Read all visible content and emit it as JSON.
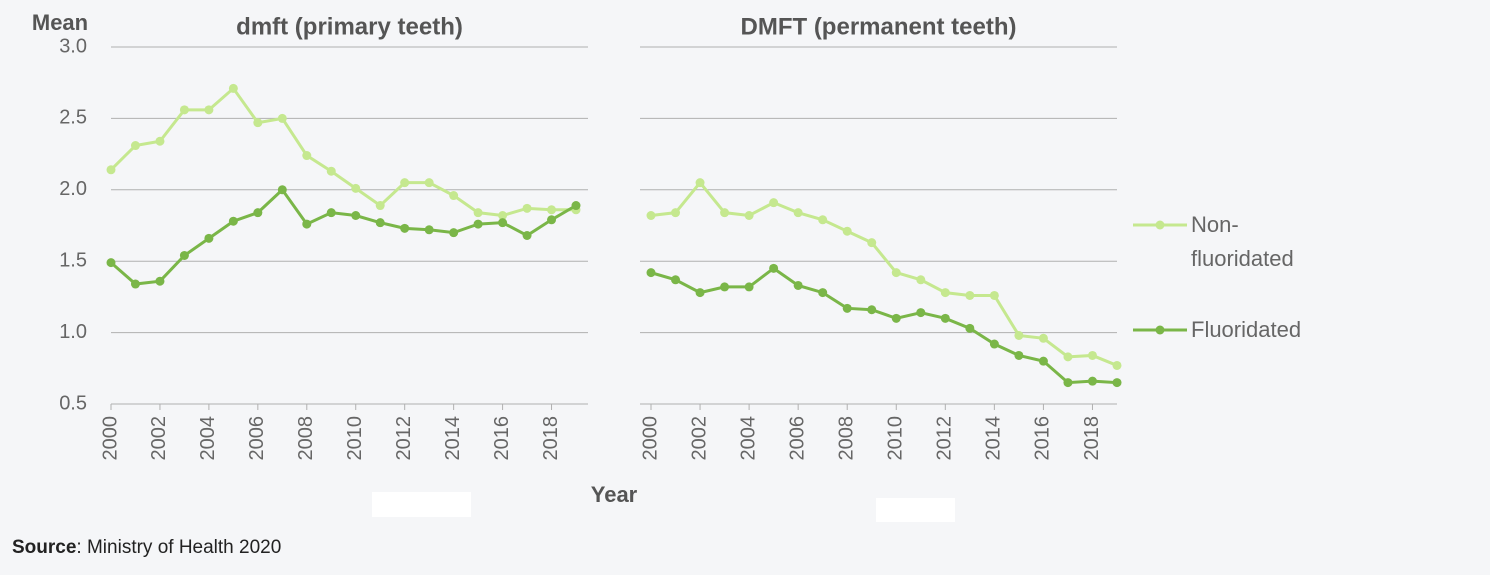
{
  "y_axis_label": "Mean",
  "x_axis_label": "Year",
  "source_label": "Source",
  "source_text": ": Ministry of Health 2020",
  "chart_data": [
    {
      "type": "line",
      "title": "dmft (primary teeth)",
      "x": [
        2000,
        2001,
        2002,
        2003,
        2004,
        2005,
        2006,
        2007,
        2008,
        2009,
        2010,
        2011,
        2012,
        2013,
        2014,
        2015,
        2016,
        2017,
        2018,
        2019
      ],
      "xlim": [
        2000,
        2019
      ],
      "xticks": [
        2000,
        2002,
        2004,
        2006,
        2008,
        2010,
        2012,
        2014,
        2016,
        2018
      ],
      "ylim": [
        0.5,
        3.0
      ],
      "yticks": [
        0.5,
        {
          "value": 1.0,
          "label": "1.0"
        },
        1.5,
        {
          "value": 2.0,
          "label": "2.0"
        },
        2.5,
        {
          "value": 3.0,
          "label": "3.0"
        }
      ],
      "grid": true,
      "series": [
        {
          "name": "Non-fluoridated",
          "color": "#c5e88f",
          "values": [
            2.14,
            2.31,
            2.34,
            2.56,
            2.56,
            2.71,
            2.47,
            2.5,
            2.24,
            2.13,
            2.01,
            1.89,
            2.05,
            2.05,
            1.96,
            1.84,
            1.82,
            1.87,
            1.86,
            1.86
          ]
        },
        {
          "name": "Fluoridated",
          "color": "#7ab648",
          "values": [
            1.49,
            1.34,
            1.36,
            1.54,
            1.66,
            1.78,
            1.84,
            2.0,
            1.76,
            1.84,
            1.82,
            1.77,
            1.73,
            1.72,
            1.7,
            1.76,
            1.77,
            1.68,
            1.79,
            1.89
          ]
        }
      ]
    },
    {
      "type": "line",
      "title": "DMFT (permanent teeth)",
      "x": [
        2000,
        2001,
        2002,
        2003,
        2004,
        2005,
        2006,
        2007,
        2008,
        2009,
        2010,
        2011,
        2012,
        2013,
        2014,
        2015,
        2016,
        2017,
        2018,
        2019
      ],
      "xlim": [
        2000,
        2019
      ],
      "xticks": [
        2000,
        2002,
        2004,
        2006,
        2008,
        2010,
        2012,
        2014,
        2016,
        2018
      ],
      "ylim": [
        0.5,
        3.0
      ],
      "yticks": [
        0.5,
        {
          "value": 1.0,
          "label": "1.0"
        },
        1.5,
        {
          "value": 2.0,
          "label": "2.0"
        },
        2.5,
        {
          "value": 3.0,
          "label": "3.0"
        }
      ],
      "grid": true,
      "series": [
        {
          "color": "#c5e88f",
          "values": [
            1.82,
            1.84,
            2.05,
            1.84,
            1.82,
            1.91,
            1.84,
            1.79,
            1.71,
            1.63,
            1.42,
            1.37,
            1.28,
            1.26,
            1.26,
            0.98,
            0.96,
            0.83,
            0.84,
            0.77
          ]
        },
        {
          "color": "#7ab648",
          "values": [
            1.42,
            1.37,
            1.28,
            1.32,
            1.32,
            1.45,
            1.33,
            1.28,
            1.17,
            1.16,
            1.1,
            1.14,
            1.1,
            1.03,
            0.92,
            0.84,
            0.8,
            0.65,
            0.66,
            0.65
          ]
        }
      ]
    }
  ]
}
